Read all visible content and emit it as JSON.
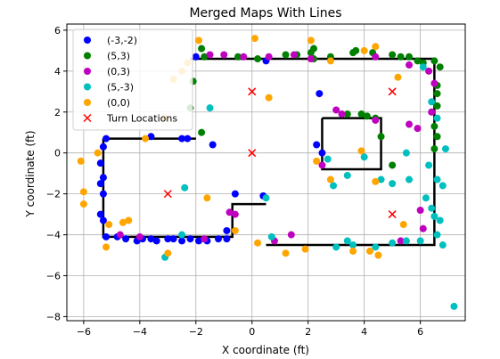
{
  "chart_data": {
    "type": "scatter",
    "title": "Merged Maps With Lines",
    "xlabel": "X coordinate (ft)",
    "ylabel": "Y coordinate (ft)",
    "xlim": [
      -6.6,
      7.6
    ],
    "ylim": [
      -8.2,
      6.3
    ],
    "xticks": [
      -6,
      -4,
      -2,
      0,
      2,
      4,
      6
    ],
    "yticks": [
      -8,
      -6,
      -4,
      -2,
      0,
      2,
      4,
      6
    ],
    "xtick_labels": [
      "−6",
      "−4",
      "−2",
      "0",
      "2",
      "4",
      "6"
    ],
    "ytick_labels": [
      "−8",
      "−6",
      "−4",
      "−2",
      "0",
      "2",
      "4",
      "6"
    ],
    "grid": true,
    "legend": {
      "position": "top-left"
    },
    "series": [
      {
        "name": "(-3,-2)",
        "color": "#0000ff",
        "marker": "circle",
        "points": [
          [
            -5.2,
            0.7
          ],
          [
            -5.3,
            0.3
          ],
          [
            -5.4,
            -0.5
          ],
          [
            -5.3,
            -1.2
          ],
          [
            -5.4,
            -1.5
          ],
          [
            -5.3,
            -2.0
          ],
          [
            -5.4,
            -3.0
          ],
          [
            -5.3,
            -3.3
          ],
          [
            -5.2,
            -4.1
          ],
          [
            -4.8,
            -4.1
          ],
          [
            -4.5,
            -4.2
          ],
          [
            -4.1,
            -4.3
          ],
          [
            -3.9,
            -4.2
          ],
          [
            -3.6,
            -4.2
          ],
          [
            -3.4,
            -4.3
          ],
          [
            -3.0,
            -4.2
          ],
          [
            -2.8,
            -4.2
          ],
          [
            -2.5,
            -4.3
          ],
          [
            -2.2,
            -4.2
          ],
          [
            -1.9,
            -4.3
          ],
          [
            -1.6,
            -4.3
          ],
          [
            -1.2,
            -4.2
          ],
          [
            -0.9,
            -4.2
          ],
          [
            -0.9,
            -3.8
          ],
          [
            -0.6,
            -2.0
          ],
          [
            0.4,
            -2.1
          ],
          [
            -1.4,
            0.4
          ],
          [
            -3.6,
            0.8
          ],
          [
            -2.5,
            0.7
          ],
          [
            -2.3,
            0.7
          ],
          [
            0.5,
            4.5
          ],
          [
            2.4,
            2.9
          ],
          [
            2.3,
            0.4
          ],
          [
            2.5,
            0.0
          ],
          [
            -2.0,
            4.7
          ]
        ]
      },
      {
        "name": "(5,3)",
        "color": "#008000",
        "marker": "circle",
        "points": [
          [
            -1.8,
            5.1
          ],
          [
            -1.7,
            4.7
          ],
          [
            -0.5,
            4.7
          ],
          [
            0.2,
            4.6
          ],
          [
            1.2,
            4.8
          ],
          [
            1.6,
            4.8
          ],
          [
            2.1,
            4.9
          ],
          [
            2.2,
            4.6
          ],
          [
            2.8,
            4.7
          ],
          [
            3.6,
            4.9
          ],
          [
            3.7,
            5.0
          ],
          [
            4.3,
            4.9
          ],
          [
            5.0,
            4.8
          ],
          [
            5.3,
            4.7
          ],
          [
            5.6,
            4.7
          ],
          [
            5.9,
            4.5
          ],
          [
            6.1,
            4.4
          ],
          [
            6.5,
            4.5
          ],
          [
            6.7,
            4.2
          ],
          [
            6.6,
            3.3
          ],
          [
            6.6,
            2.9
          ],
          [
            6.6,
            2.3
          ],
          [
            6.5,
            1.3
          ],
          [
            6.6,
            0.8
          ],
          [
            6.5,
            0.2
          ],
          [
            2.2,
            5.1
          ],
          [
            -2.2,
            2.2
          ],
          [
            -2.1,
            3.5
          ],
          [
            -1.8,
            1.0
          ],
          [
            3.4,
            1.9
          ],
          [
            3.9,
            1.9
          ],
          [
            4.1,
            1.8
          ],
          [
            4.4,
            1.7
          ],
          [
            4.6,
            0.8
          ],
          [
            5.0,
            -0.6
          ]
        ]
      },
      {
        "name": "(0,3)",
        "color": "#bf00bf",
        "marker": "circle",
        "points": [
          [
            -1.5,
            4.8
          ],
          [
            -1.0,
            4.8
          ],
          [
            -0.3,
            4.7
          ],
          [
            0.6,
            4.7
          ],
          [
            1.5,
            4.8
          ],
          [
            2.1,
            4.6
          ],
          [
            4.4,
            4.7
          ],
          [
            5.6,
            4.3
          ],
          [
            6.3,
            4.0
          ],
          [
            6.5,
            3.4
          ],
          [
            6.4,
            2.0
          ],
          [
            5.6,
            1.4
          ],
          [
            5.9,
            1.2
          ],
          [
            3.0,
            2.1
          ],
          [
            3.2,
            1.9
          ],
          [
            4.4,
            1.6
          ],
          [
            2.5,
            -0.6
          ],
          [
            -4.7,
            -4.0
          ],
          [
            -4.0,
            -4.1
          ],
          [
            -1.7,
            -4.2
          ],
          [
            -0.8,
            -2.9
          ],
          [
            -0.6,
            -3.0
          ],
          [
            1.4,
            -4.0
          ],
          [
            0.8,
            -4.3
          ],
          [
            5.3,
            -4.3
          ],
          [
            6.1,
            -3.7
          ],
          [
            6.0,
            -2.8
          ]
        ]
      },
      {
        "name": "(5,-3)",
        "color": "#00bfbf",
        "marker": "circle",
        "points": [
          [
            6.1,
            4.2
          ],
          [
            6.4,
            2.5
          ],
          [
            6.6,
            1.7
          ],
          [
            6.9,
            0.2
          ],
          [
            5.5,
            0.0
          ],
          [
            6.3,
            -0.6
          ],
          [
            6.6,
            -1.3
          ],
          [
            6.8,
            -1.6
          ],
          [
            6.2,
            -2.2
          ],
          [
            6.4,
            -2.7
          ],
          [
            6.5,
            -3.1
          ],
          [
            6.7,
            -3.3
          ],
          [
            6.6,
            -4.0
          ],
          [
            6.8,
            -4.5
          ],
          [
            6.0,
            -4.3
          ],
          [
            5.5,
            -4.3
          ],
          [
            5.0,
            -4.4
          ],
          [
            4.4,
            -4.6
          ],
          [
            3.6,
            -4.5
          ],
          [
            3.4,
            -4.3
          ],
          [
            3.0,
            -4.6
          ],
          [
            2.9,
            -1.6
          ],
          [
            3.4,
            -1.1
          ],
          [
            4.6,
            -1.3
          ],
          [
            5.0,
            -1.5
          ],
          [
            5.6,
            -1.3
          ],
          [
            4.0,
            -0.2
          ],
          [
            2.7,
            -0.3
          ],
          [
            -2.4,
            -1.7
          ],
          [
            -1.5,
            2.2
          ],
          [
            0.7,
            -4.1
          ],
          [
            0.5,
            -2.2
          ],
          [
            -2.5,
            -4.0
          ],
          [
            -3.1,
            -5.1
          ],
          [
            7.2,
            -7.5
          ]
        ]
      },
      {
        "name": "(0,0)",
        "color": "#ffa500",
        "marker": "circle",
        "points": [
          [
            -6.1,
            -0.4
          ],
          [
            -5.5,
            0.0
          ],
          [
            -6.0,
            -1.9
          ],
          [
            -6.0,
            -2.5
          ],
          [
            -5.1,
            -3.5
          ],
          [
            -5.2,
            -4.6
          ],
          [
            -4.6,
            -3.4
          ],
          [
            -4.4,
            -3.3
          ],
          [
            -3.8,
            0.7
          ],
          [
            -3.1,
            1.7
          ],
          [
            -2.8,
            3.6
          ],
          [
            -1.9,
            5.5
          ],
          [
            0.1,
            5.6
          ],
          [
            0.6,
            2.7
          ],
          [
            2.1,
            5.5
          ],
          [
            2.8,
            4.5
          ],
          [
            4.0,
            5.0
          ],
          [
            4.4,
            5.2
          ],
          [
            5.2,
            3.7
          ],
          [
            2.3,
            -0.4
          ],
          [
            2.8,
            -1.3
          ],
          [
            3.9,
            0.1
          ],
          [
            4.4,
            -1.4
          ],
          [
            -1.6,
            -2.2
          ],
          [
            -0.6,
            -3.8
          ],
          [
            0.2,
            -4.4
          ],
          [
            1.2,
            -4.9
          ],
          [
            1.9,
            -4.7
          ],
          [
            3.6,
            -4.8
          ],
          [
            4.2,
            -4.8
          ],
          [
            4.5,
            -5.0
          ],
          [
            5.4,
            -3.5
          ],
          [
            -3.0,
            -4.9
          ],
          [
            -2.5,
            4.0
          ],
          [
            -2.3,
            4.4
          ]
        ]
      },
      {
        "name": "Turn Locations",
        "color": "#ff0000",
        "marker": "x",
        "points": [
          [
            0,
            3
          ],
          [
            5,
            3
          ],
          [
            0,
            0
          ],
          [
            -3,
            -2
          ],
          [
            5,
            -3
          ]
        ]
      }
    ],
    "lines": {
      "color": "#000000",
      "paths": [
        [
          [
            -2.2,
            4.6
          ],
          [
            6.5,
            4.6
          ],
          [
            6.5,
            -4.5
          ],
          [
            0.5,
            -4.5
          ]
        ],
        [
          [
            -5.3,
            0.7
          ],
          [
            -2.0,
            0.7
          ]
        ],
        [
          [
            -5.3,
            0.7
          ],
          [
            -5.3,
            -4.1
          ],
          [
            -0.7,
            -4.1
          ],
          [
            -0.7,
            -2.5
          ],
          [
            0.5,
            -2.5
          ]
        ],
        [
          [
            2.5,
            1.7
          ],
          [
            4.6,
            1.7
          ],
          [
            4.6,
            -0.8
          ],
          [
            2.5,
            -0.8
          ],
          [
            2.5,
            1.7
          ]
        ]
      ]
    }
  }
}
